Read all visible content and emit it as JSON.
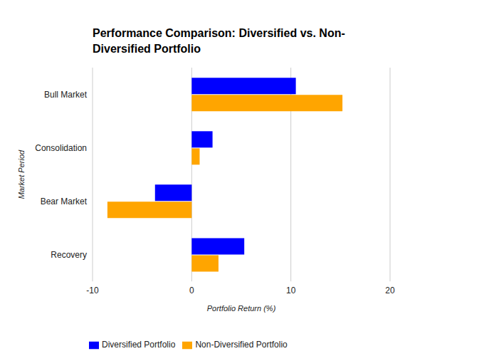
{
  "chart_data": {
    "type": "bar",
    "title": "Performance Comparison: Diversified vs. Non-Diversified Portfolio",
    "x_label": "Portfolio Return (%)",
    "y_label": "Market Period",
    "orientation": "horizontal",
    "categories": [
      "Bull Market",
      "Consolidation",
      "Bear Market",
      "Recovery"
    ],
    "series": [
      {
        "name": "Diversified Portfolio",
        "color": "#0000ff",
        "values": [
          10.5,
          2.1,
          -3.7,
          5.3
        ]
      },
      {
        "name": "Non-Diversified Portfolio",
        "color": "#ffa500",
        "values": [
          15.2,
          0.8,
          -8.5,
          2.7
        ]
      }
    ],
    "xlim": [
      -10,
      20
    ],
    "xticks": [
      -10,
      0,
      10,
      20
    ],
    "grid": true,
    "legend": "bottom-left"
  }
}
